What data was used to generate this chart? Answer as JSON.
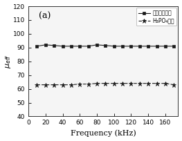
{
  "xlabel": "Frequency (kHz)",
  "xlim": [
    0,
    175
  ],
  "ylim": [
    40,
    120
  ],
  "xticks": [
    0,
    20,
    40,
    60,
    80,
    100,
    120,
    140,
    160
  ],
  "yticks": [
    40,
    50,
    60,
    70,
    80,
    90,
    100,
    110,
    120
  ],
  "label_a": "(a)",
  "legend1": "表面氧化工艺",
  "legend2": "H₃PO₄锑化",
  "line1_x": [
    10,
    20,
    30,
    40,
    50,
    60,
    70,
    80,
    90,
    100,
    110,
    120,
    130,
    140,
    150,
    160,
    170
  ],
  "line1_y": [
    91.0,
    92.0,
    91.5,
    91.0,
    91.0,
    91.0,
    91.0,
    92.0,
    91.5,
    91.0,
    91.0,
    91.0,
    91.0,
    91.0,
    91.0,
    91.0,
    91.0
  ],
  "line2_x": [
    10,
    20,
    30,
    40,
    50,
    60,
    70,
    80,
    90,
    100,
    110,
    120,
    130,
    140,
    150,
    160,
    170
  ],
  "line2_y": [
    63.0,
    63.0,
    63.0,
    63.0,
    63.0,
    63.5,
    63.5,
    64.0,
    64.0,
    64.0,
    64.0,
    64.0,
    64.0,
    64.0,
    64.0,
    64.0,
    63.0
  ],
  "line_color": "#1a1a1a",
  "bg_color": "#f5f5f5",
  "fig_bg": "#ffffff"
}
